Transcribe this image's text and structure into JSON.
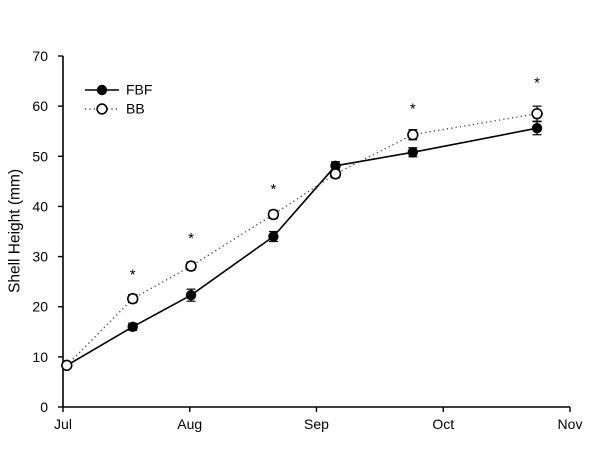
{
  "figure": {
    "background": "#ffffff",
    "axis_color": "#000000",
    "text_color": "#000000"
  },
  "chart_data": {
    "type": "line",
    "title": "",
    "xlabel": "",
    "ylabel": "Shell Height (mm)",
    "ylim": [
      0,
      70
    ],
    "yticks": [
      0,
      10,
      20,
      30,
      40,
      50,
      60,
      70
    ],
    "xlim_months": [
      0,
      4
    ],
    "xticks": [
      {
        "month": 0,
        "label": "Jul"
      },
      {
        "month": 1,
        "label": "Aug"
      },
      {
        "month": 2,
        "label": "Sep"
      },
      {
        "month": 3,
        "label": "Oct"
      },
      {
        "month": 4,
        "label": "Nov"
      }
    ],
    "grid": false,
    "legend_position": "top-left",
    "series": [
      {
        "name": "FBF",
        "marker": "filled-circle",
        "line_style": "solid",
        "line_color": "#000000",
        "marker_color": "#000000",
        "x_months": [
          0.03,
          0.55,
          1.01,
          1.66,
          2.15,
          2.76,
          3.74
        ],
        "y": [
          8.3,
          16.0,
          22.3,
          34.0,
          48.1,
          50.8,
          55.6
        ],
        "yerr": [
          0,
          0.7,
          1.2,
          1.0,
          0.8,
          0.9,
          1.3
        ]
      },
      {
        "name": "BB",
        "marker": "open-circle",
        "line_style": "dotted",
        "line_color": "#444444",
        "marker_color": "#000000",
        "x_months": [
          0.03,
          0.55,
          1.01,
          1.66,
          2.15,
          2.76,
          3.74
        ],
        "y": [
          8.3,
          21.6,
          28.1,
          38.4,
          46.5,
          54.3,
          58.5
        ],
        "yerr": [
          0,
          0.8,
          0.8,
          0.8,
          0.8,
          1.0,
          1.5
        ]
      }
    ],
    "annotations": [
      {
        "symbol": "*",
        "x_month": 0.55,
        "y": 26.8
      },
      {
        "symbol": "*",
        "x_month": 1.01,
        "y": 34.1
      },
      {
        "symbol": "*",
        "x_month": 1.66,
        "y": 43.9
      },
      {
        "symbol": "*",
        "x_month": 2.76,
        "y": 59.9
      },
      {
        "symbol": "*",
        "x_month": 3.74,
        "y": 65.1
      }
    ]
  }
}
